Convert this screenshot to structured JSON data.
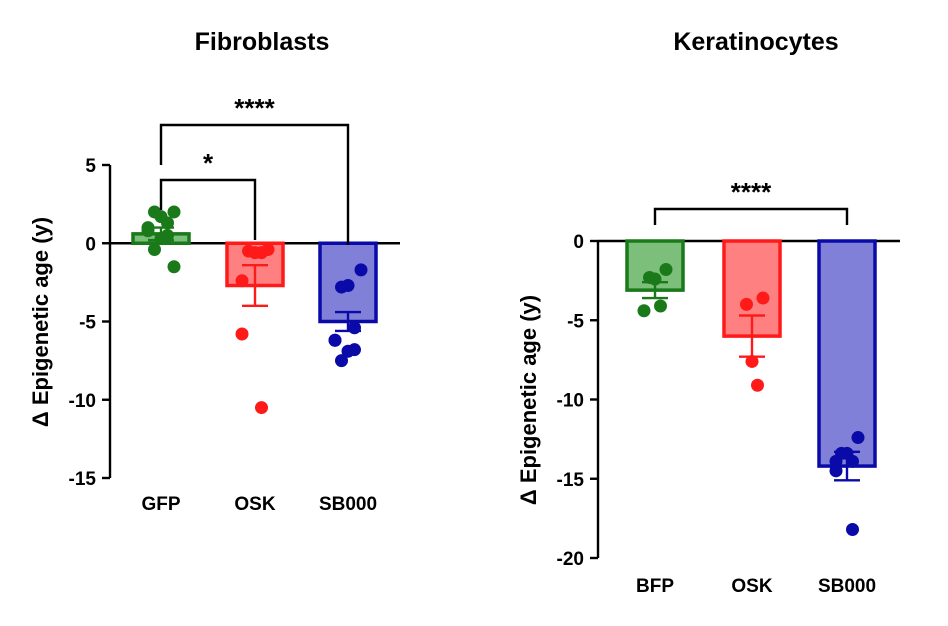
{
  "chart_data": [
    {
      "type": "bar",
      "title": "Fibroblasts",
      "ylabel": "Δ Epigenetic age (y)",
      "xlabel": "",
      "ylim": [
        -15,
        5
      ],
      "yticks": [
        5,
        0,
        -5,
        -10,
        -15
      ],
      "categories": [
        "GFP",
        "OSK",
        "SB000"
      ],
      "series": [
        {
          "name": "GFP",
          "mean": 0.6,
          "sem": 0.4,
          "color": "#1a7a1a",
          "fill": "#7bbf7b",
          "points": [
            2.0,
            2.0,
            1.7,
            1.3,
            1.0,
            0.8,
            0.5,
            0.3,
            -0.4,
            -1.5
          ]
        },
        {
          "name": "OSK",
          "mean": -2.7,
          "sem": 1.3,
          "color": "#ff1a1a",
          "fill": "#ff8080",
          "points": [
            -0.4,
            -0.5,
            -0.6,
            -0.6,
            -2.4,
            -5.8,
            -10.5
          ]
        },
        {
          "name": "SB000",
          "mean": -5.0,
          "sem": 0.6,
          "color": "#0a0aa8",
          "fill": "#8080d9",
          "points": [
            -1.7,
            -2.8,
            -2.7,
            -5.4,
            -6.2,
            -6.2,
            -6.8,
            -6.9,
            -7.5
          ]
        }
      ],
      "significance": [
        {
          "from": "GFP",
          "to": "OSK",
          "label": "*"
        },
        {
          "from": "GFP",
          "to": "SB000",
          "label": "****"
        }
      ]
    },
    {
      "type": "bar",
      "title": "Keratinocytes",
      "ylabel": "Δ Epigenetic age (y)",
      "xlabel": "",
      "ylim": [
        -20,
        0
      ],
      "yticks": [
        0,
        -5,
        -10,
        -15,
        -20
      ],
      "categories": [
        "BFP",
        "OSK",
        "SB000"
      ],
      "series": [
        {
          "name": "BFP",
          "mean": -3.1,
          "sem": 0.5,
          "color": "#1a7a1a",
          "fill": "#7bbf7b",
          "points": [
            -1.8,
            -2.3,
            -2.4,
            -4.1,
            -4.4
          ]
        },
        {
          "name": "OSK",
          "mean": -6.0,
          "sem": 1.3,
          "color": "#ff1a1a",
          "fill": "#ff8080",
          "points": [
            -3.6,
            -4.0,
            -7.6,
            -9.1
          ]
        },
        {
          "name": "SB000",
          "mean": -14.2,
          "sem": 0.9,
          "color": "#0a0aa8",
          "fill": "#8080d9",
          "points": [
            -12.4,
            -13.4,
            -13.4,
            -13.9,
            -13.9,
            -14.5,
            -18.2
          ]
        }
      ],
      "significance": [
        {
          "from": "BFP",
          "to": "SB000",
          "label": "****"
        }
      ]
    }
  ]
}
